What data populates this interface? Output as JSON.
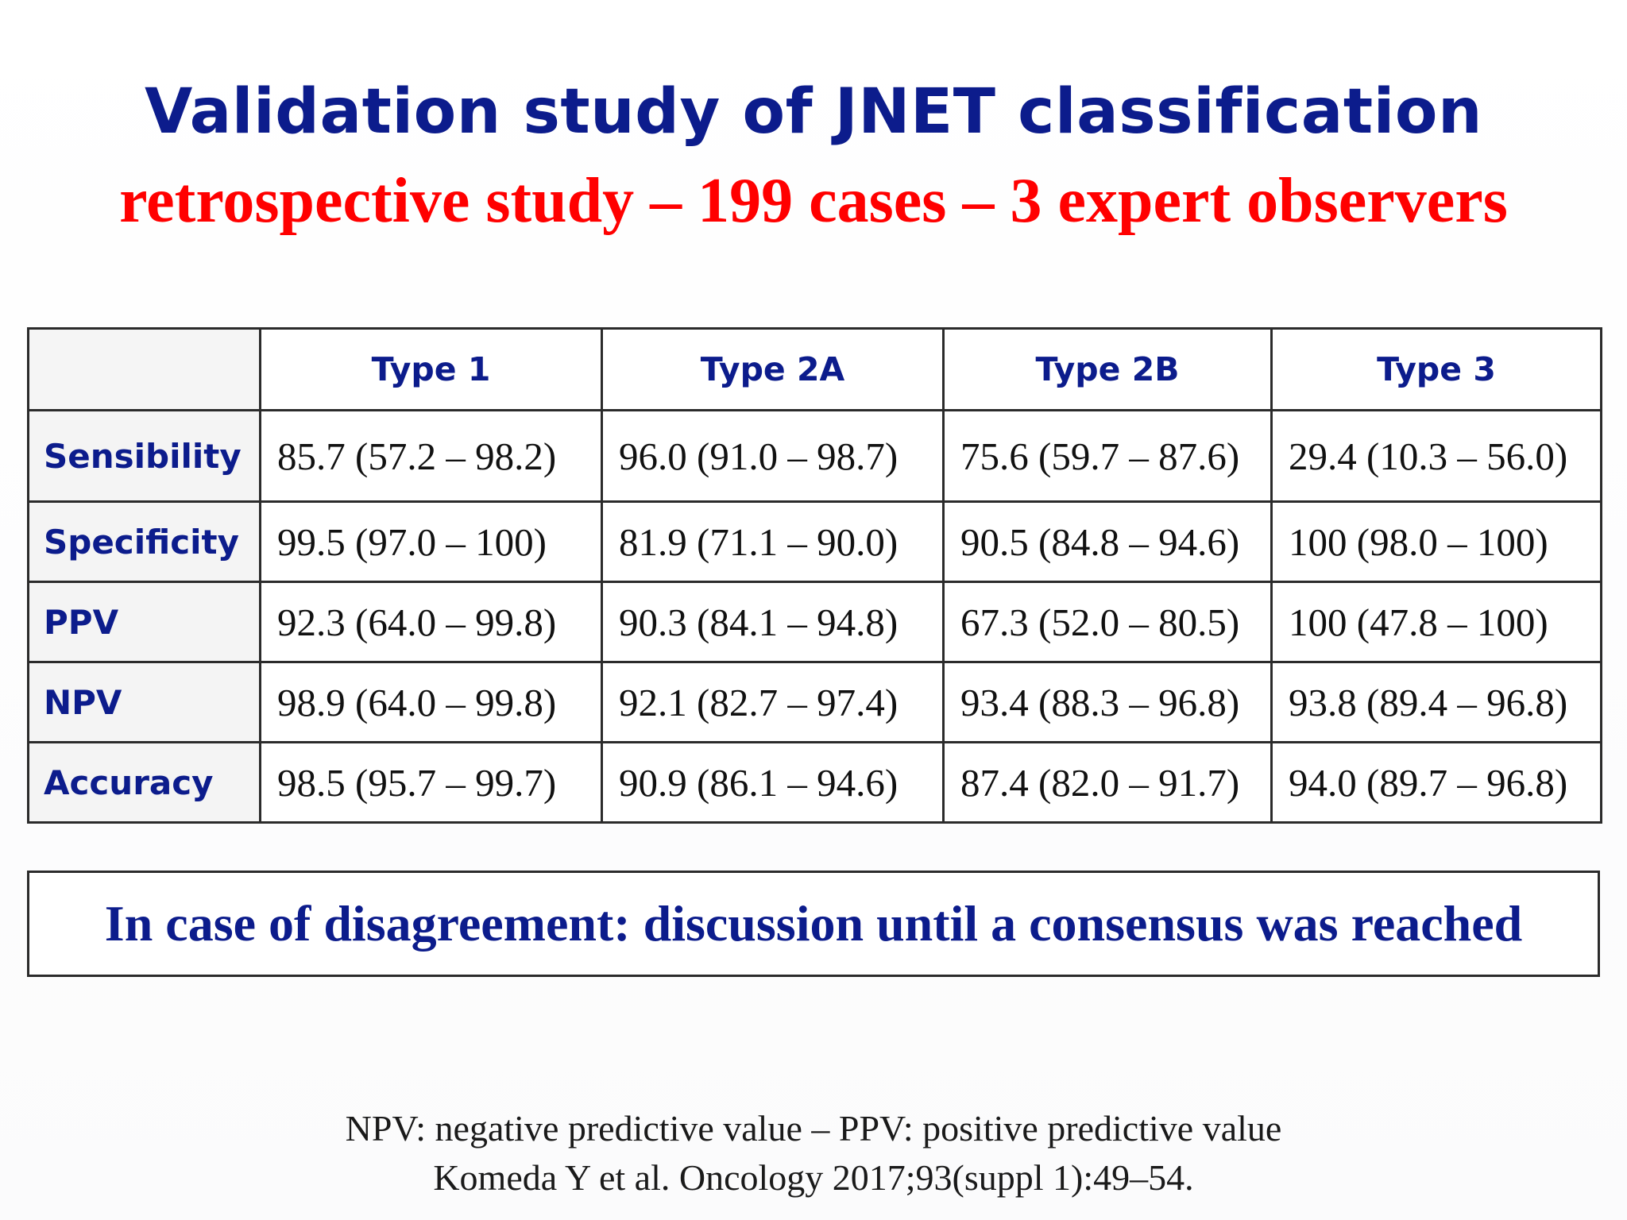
{
  "slide": {
    "title": "Validation study of JNET classification",
    "subtitle": "retrospective study – 199 cases – 3 expert observers",
    "table": {
      "columns": [
        "Type 1",
        "Type 2A",
        "Type 2B",
        "Type 3"
      ],
      "rows": [
        {
          "label": "Sensibility",
          "values": [
            "85.7 (57.2 – 98.2)",
            "96.0 (91.0 – 98.7)",
            "75.6 (59.7 – 87.6)",
            "29.4 (10.3 – 56.0)"
          ]
        },
        {
          "label": "Specificity",
          "values": [
            "99.5 (97.0 – 100)",
            "81.9 (71.1 – 90.0)",
            "90.5 (84.8 – 94.6)",
            "100 (98.0 – 100)"
          ]
        },
        {
          "label": "PPV",
          "values": [
            "92.3 (64.0 – 99.8)",
            "90.3 (84.1 – 94.8)",
            "67.3 (52.0 – 80.5)",
            "100 (47.8 – 100)"
          ]
        },
        {
          "label": "NPV",
          "values": [
            "98.9 (64.0 – 99.8)",
            "92.1 (82.7 – 97.4)",
            "93.4 (88.3 – 96.8)",
            "93.8 (89.4 – 96.8)"
          ]
        },
        {
          "label": "Accuracy",
          "values": [
            "98.5 (95.7 – 99.7)",
            "90.9 (86.1 – 94.6)",
            "87.4 (82.0 – 91.7)",
            "94.0 (89.7 – 96.8)"
          ]
        }
      ]
    },
    "note": "In case of disagreement: discussion until a consensus was reached",
    "footnotes": [
      "NPV: negative predictive value – PPV: positive predictive value",
      "Komeda Y et al. Oncology 2017;93(suppl 1):49–54."
    ],
    "colors": {
      "title": "#0c1c8c",
      "subtitle": "#ff0000",
      "label": "#0c1c8c",
      "border": "#2b2b2b"
    }
  }
}
